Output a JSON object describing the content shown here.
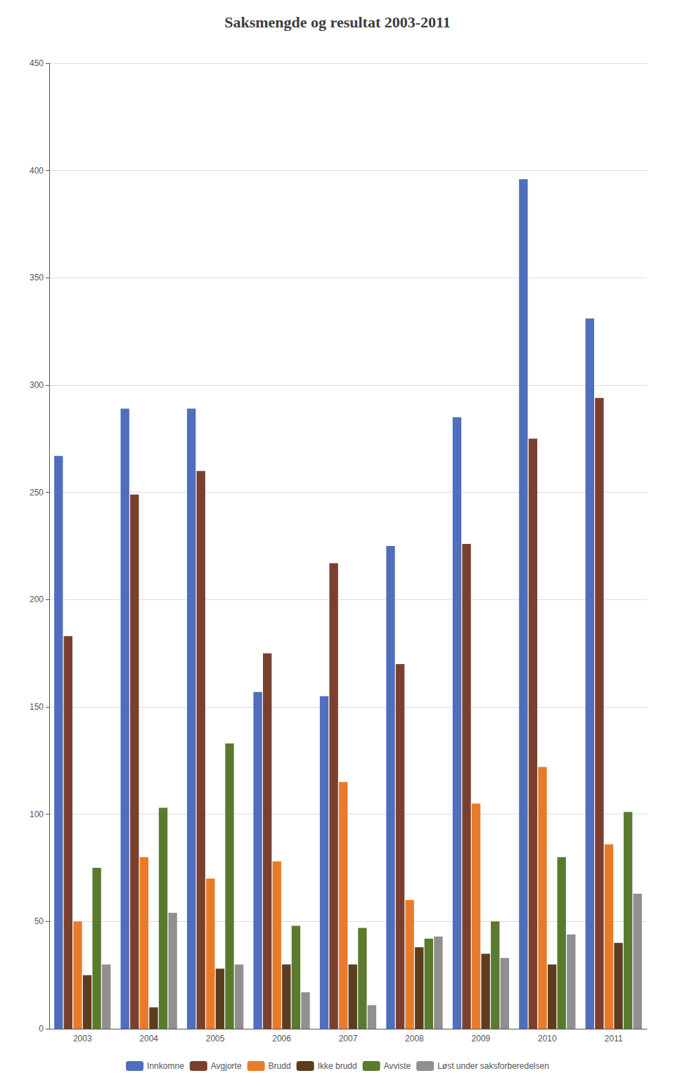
{
  "chart_data": {
    "type": "bar",
    "title": "Saksmengde og resultat 2003-2011",
    "categories": [
      "2003",
      "2004",
      "2005",
      "2006",
      "2007",
      "2008",
      "2009",
      "2010",
      "2011"
    ],
    "series": [
      {
        "name": "Innkomne",
        "color": "#4F6EBD",
        "values": [
          267,
          289,
          289,
          157,
          155,
          225,
          285,
          396,
          331
        ]
      },
      {
        "name": "Avgjorte",
        "color": "#7B3F2E",
        "values": [
          183,
          249,
          260,
          175,
          217,
          170,
          226,
          275,
          294
        ]
      },
      {
        "name": "Brudd",
        "color": "#E87B2A",
        "values": [
          50,
          80,
          70,
          78,
          115,
          60,
          105,
          122,
          86
        ]
      },
      {
        "name": "Ikke brudd",
        "color": "#5C3D1E",
        "values": [
          25,
          10,
          28,
          30,
          30,
          38,
          35,
          30,
          40
        ]
      },
      {
        "name": "Avviste",
        "color": "#5A7A2E",
        "values": [
          75,
          103,
          133,
          48,
          47,
          42,
          50,
          80,
          101
        ]
      },
      {
        "name": "Løst under saksforberedelsen",
        "color": "#909090",
        "values": [
          30,
          54,
          30,
          17,
          11,
          43,
          33,
          44,
          63
        ]
      }
    ],
    "ylim": [
      0,
      450
    ],
    "yticks": [
      0,
      50,
      100,
      150,
      200,
      250,
      300,
      350,
      400,
      450
    ],
    "grid": true,
    "legend": "bottom"
  }
}
